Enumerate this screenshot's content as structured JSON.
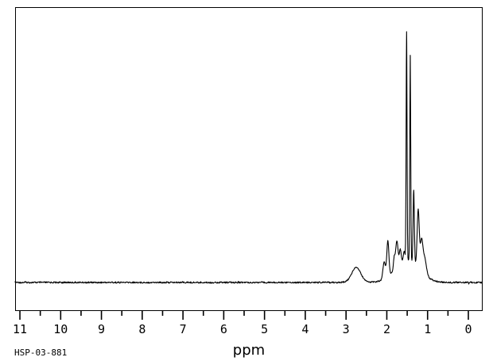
{
  "labels": {
    "sample_id": "HSP-03-881",
    "x_axis_unit": "ppm"
  },
  "chart_data": {
    "type": "line",
    "subtype": "1H NMR spectrum",
    "title": "",
    "xlabel": "ppm",
    "ylabel": "",
    "trace_color": "#000000",
    "frame_color": "#000000",
    "background_color": "#ffffff",
    "grid": false,
    "legend": null,
    "x_axis": {
      "direction": "right-to-left",
      "major_ticks": [
        11,
        10,
        9,
        8,
        7,
        6,
        5,
        4,
        3,
        2,
        1,
        0
      ],
      "minor_tick_step": 0.5,
      "frame_max_ppm": 11.12,
      "frame_min_ppm": -0.34
    },
    "y_axis": {
      "shown": false
    },
    "noise_rel_amplitude": 0.003,
    "apparent_peak_maxima_ppm": [
      2.76,
      2.07,
      1.98,
      1.76,
      1.67,
      1.58,
      1.51,
      1.42,
      1.34,
      1.23,
      1.15
    ],
    "peaks": [
      {
        "ppm": 2.75,
        "rel_intensity": 0.06,
        "hwhm_ppm": 0.13,
        "broad": true
      },
      {
        "ppm": 2.065,
        "rel_intensity": 0.068,
        "hwhm_ppm": 0.035,
        "broad": false
      },
      {
        "ppm": 1.975,
        "rel_intensity": 0.142,
        "hwhm_ppm": 0.03,
        "broad": false
      },
      {
        "ppm": 1.82,
        "rel_intensity": 0.045,
        "hwhm_ppm": 0.022,
        "broad": false
      },
      {
        "ppm": 1.755,
        "rel_intensity": 0.104,
        "hwhm_ppm": 0.035,
        "broad": false
      },
      {
        "ppm": 1.67,
        "rel_intensity": 0.057,
        "hwhm_ppm": 0.025,
        "broad": false
      },
      {
        "ppm": 1.575,
        "rel_intensity": 0.038,
        "hwhm_ppm": 0.025,
        "broad": false
      },
      {
        "ppm": 1.515,
        "rel_intensity": 0.911,
        "hwhm_ppm": 0.013,
        "broad": false
      },
      {
        "ppm": 1.425,
        "rel_intensity": 0.82,
        "hwhm_ppm": 0.013,
        "broad": false
      },
      {
        "ppm": 1.34,
        "rel_intensity": 0.291,
        "hwhm_ppm": 0.018,
        "broad": false
      },
      {
        "ppm": 1.23,
        "rel_intensity": 0.231,
        "hwhm_ppm": 0.03,
        "broad": false
      },
      {
        "ppm": 1.15,
        "rel_intensity": 0.108,
        "hwhm_ppm": 0.035,
        "broad": false
      },
      {
        "ppm": 1.08,
        "rel_intensity": 0.07,
        "hwhm_ppm": 0.055,
        "broad": false
      },
      {
        "ppm": 1.5,
        "rel_intensity": 0.089,
        "hwhm_ppm": 0.35,
        "broad": true
      }
    ]
  }
}
